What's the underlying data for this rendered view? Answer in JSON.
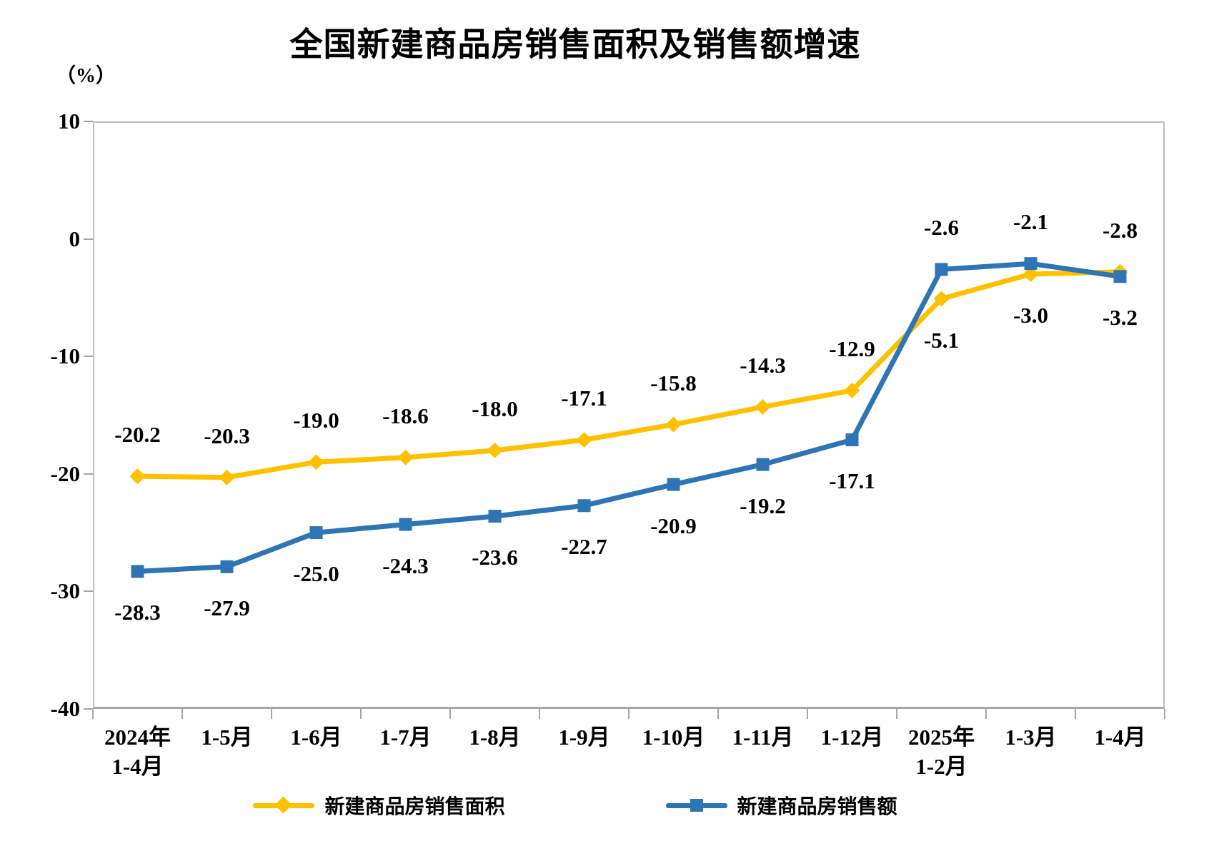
{
  "title": "全国新建商品房销售面积及销售额增速",
  "y_axis_unit": "（%）",
  "colors": {
    "area_series": "#FFC000",
    "value_series": "#2E75B6",
    "axis": "#A6A6A6",
    "text": "#000000"
  },
  "chart_data": {
    "type": "line",
    "categories": [
      [
        "2024年",
        "1-4月"
      ],
      [
        "1-5月"
      ],
      [
        "1-6月"
      ],
      [
        "1-7月"
      ],
      [
        "1-8月"
      ],
      [
        "1-9月"
      ],
      [
        "1-10月"
      ],
      [
        "1-11月"
      ],
      [
        "1-12月"
      ],
      [
        "2025年",
        "1-2月"
      ],
      [
        "1-3月"
      ],
      [
        "1-4月"
      ]
    ],
    "series": [
      {
        "name": "新建商品房销售面积",
        "color": "#FFC000",
        "marker": "diamond",
        "values": [
          -20.2,
          -20.3,
          -19.0,
          -18.6,
          -18.0,
          -17.1,
          -15.8,
          -14.3,
          -12.9,
          -5.1,
          -3.0,
          -2.8
        ],
        "label_side": [
          "above",
          "above",
          "above",
          "above",
          "above",
          "above",
          "above",
          "above",
          "above",
          "below",
          "below",
          "above"
        ]
      },
      {
        "name": "新建商品房销售额",
        "color": "#2E75B6",
        "marker": "square",
        "values": [
          -28.3,
          -27.9,
          -25.0,
          -24.3,
          -23.6,
          -22.7,
          -20.9,
          -19.2,
          -17.1,
          -2.6,
          -2.1,
          -3.2
        ],
        "label_side": [
          "below",
          "below",
          "below",
          "below",
          "below",
          "below",
          "below",
          "below",
          "below",
          "above",
          "above",
          "below"
        ]
      }
    ],
    "ylabel": "（%）",
    "ylim": [
      -40,
      10
    ],
    "yticks": [
      10,
      0,
      -10,
      -20,
      -30,
      -40
    ],
    "grid": false,
    "legend_position": "bottom",
    "data_labels": true,
    "data_label_decimals": 1
  }
}
